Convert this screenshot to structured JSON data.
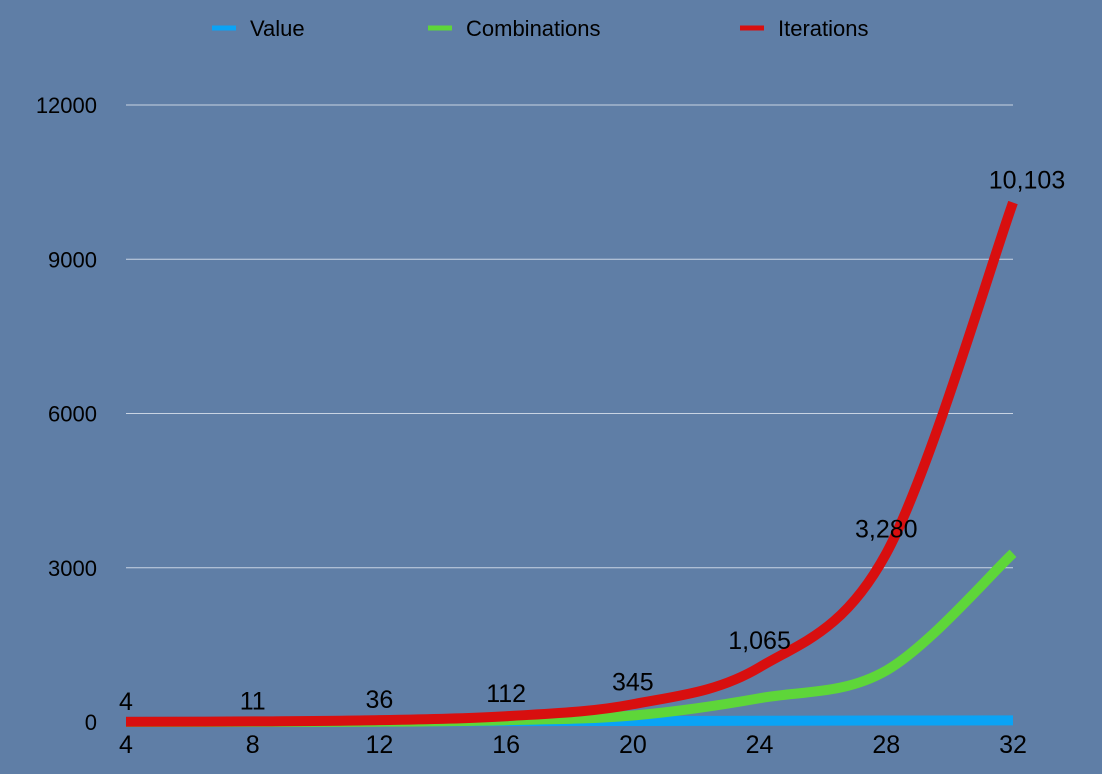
{
  "chart_data": {
    "type": "line",
    "title": "",
    "xlabel": "",
    "ylabel": "",
    "x": [
      4,
      8,
      12,
      16,
      20,
      24,
      28,
      32
    ],
    "ylim": [
      0,
      12000
    ],
    "yticks": [
      "0",
      "3000",
      "6000",
      "9000",
      "12000"
    ],
    "xticks": [
      "4",
      "8",
      "12",
      "16",
      "20",
      "24",
      "28",
      "32"
    ],
    "grid": true,
    "legend_position": "top",
    "series": [
      {
        "name": "Value",
        "color": "#0aa3f5",
        "values": [
          4,
          8,
          12,
          16,
          20,
          24,
          28,
          32
        ]
      },
      {
        "name": "Combinations",
        "color": "#5ed639",
        "values": [
          0,
          2,
          6,
          35,
          126,
          462,
          1001,
          3280
        ]
      },
      {
        "name": "Iterations",
        "color": "#d80f0f",
        "values": [
          4,
          11,
          36,
          112,
          345,
          1065,
          3280,
          10103
        ]
      }
    ],
    "data_labels": {
      "series": "Iterations",
      "labels": [
        "4",
        "11",
        "36",
        "112",
        "345",
        "1,065",
        "3,280",
        "10,103"
      ]
    }
  }
}
